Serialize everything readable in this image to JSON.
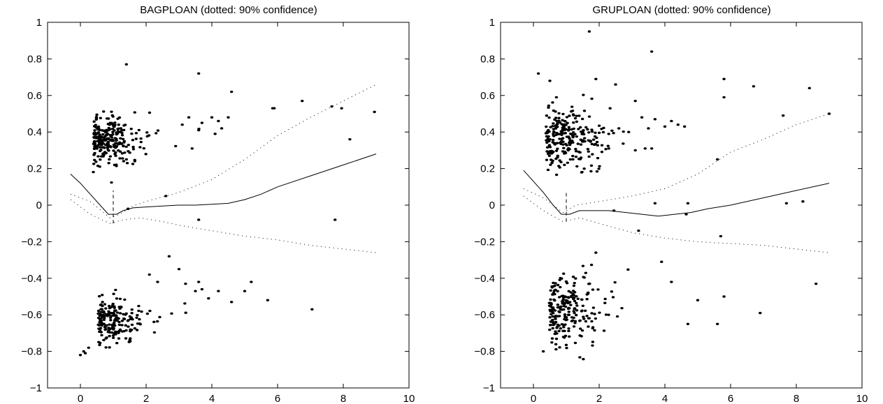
{
  "chart_data": [
    {
      "type": "scatter",
      "title": "BAGPLOAN (dotted: 90% confidence)",
      "xlabel": "",
      "ylabel": "",
      "xlim": [
        -1,
        10
      ],
      "ylim": [
        -1,
        1
      ],
      "x_ticks": [
        "0",
        "2",
        "4",
        "6",
        "8",
        "10"
      ],
      "x_tick_values": [
        0,
        2,
        4,
        6,
        8,
        10
      ],
      "y_ticks": [
        "-1",
        "-0.8",
        "-0.6",
        "-0.4",
        "-0.2",
        "0",
        "0.2",
        "0.4",
        "0.6",
        "0.8",
        "1"
      ],
      "y_tick_values": [
        -1,
        -0.8,
        -0.6,
        -0.4,
        -0.2,
        0,
        0.2,
        0.4,
        0.6,
        0.8,
        1
      ],
      "grid": false,
      "marker_vline_x": 1.0,
      "marker_vline_y": [
        -0.1,
        0.08
      ],
      "fit_curve": [
        [
          -0.3,
          0.17
        ],
        [
          0,
          0.12
        ],
        [
          0.3,
          0.06
        ],
        [
          0.6,
          0.0
        ],
        [
          0.85,
          -0.05
        ],
        [
          1.1,
          -0.05
        ],
        [
          1.3,
          -0.03
        ],
        [
          1.6,
          -0.015
        ],
        [
          2,
          -0.01
        ],
        [
          2.5,
          -0.005
        ],
        [
          3,
          0.0
        ],
        [
          3.5,
          0.0
        ],
        [
          4,
          0.005
        ],
        [
          4.5,
          0.01
        ],
        [
          5,
          0.03
        ],
        [
          5.5,
          0.06
        ],
        [
          6,
          0.1
        ],
        [
          7,
          0.16
        ],
        [
          8,
          0.22
        ],
        [
          9,
          0.28
        ]
      ],
      "ci_upper": [
        [
          -0.3,
          0.06
        ],
        [
          0.3,
          0.02
        ],
        [
          0.9,
          -0.07
        ],
        [
          1.2,
          -0.05
        ],
        [
          1.6,
          -0.005
        ],
        [
          2,
          0.02
        ],
        [
          3,
          0.07
        ],
        [
          4,
          0.14
        ],
        [
          5,
          0.25
        ],
        [
          6,
          0.38
        ],
        [
          7,
          0.48
        ],
        [
          8,
          0.57
        ],
        [
          9,
          0.66
        ]
      ],
      "ci_lower": [
        [
          -0.3,
          0.03
        ],
        [
          0.3,
          -0.05
        ],
        [
          0.9,
          -0.1
        ],
        [
          1.3,
          -0.08
        ],
        [
          1.8,
          -0.07
        ],
        [
          2.5,
          -0.09
        ],
        [
          3,
          -0.11
        ],
        [
          4,
          -0.14
        ],
        [
          5,
          -0.17
        ],
        [
          6,
          -0.19
        ],
        [
          7,
          -0.22
        ],
        [
          8,
          -0.24
        ],
        [
          9,
          -0.26
        ]
      ],
      "points_outliers": [
        [
          1.4,
          0.77
        ],
        [
          3.6,
          0.72
        ],
        [
          4.6,
          0.62
        ],
        [
          5.85,
          0.53
        ],
        [
          5.9,
          0.53
        ],
        [
          6.75,
          0.57
        ],
        [
          7.65,
          0.54
        ],
        [
          7.95,
          0.53
        ],
        [
          8.95,
          0.51
        ],
        [
          8.2,
          0.36
        ],
        [
          3.4,
          0.31
        ],
        [
          3.1,
          0.44
        ],
        [
          3.3,
          0.48
        ],
        [
          3.6,
          0.41
        ],
        [
          3.7,
          0.45
        ],
        [
          4.0,
          0.48
        ],
        [
          4.2,
          0.46
        ],
        [
          4.3,
          0.42
        ],
        [
          4.1,
          0.39
        ],
        [
          4.5,
          0.48
        ],
        [
          2.6,
          0.05
        ],
        [
          3.6,
          -0.08
        ],
        [
          1.45,
          -0.02
        ],
        [
          7.75,
          -0.08
        ],
        [
          2.7,
          -0.28
        ],
        [
          3.0,
          -0.35
        ],
        [
          3.2,
          -0.43
        ],
        [
          3.5,
          -0.47
        ],
        [
          3.6,
          -0.42
        ],
        [
          3.7,
          -0.46
        ],
        [
          3.9,
          -0.51
        ],
        [
          4.2,
          -0.47
        ],
        [
          4.6,
          -0.53
        ],
        [
          5.0,
          -0.47
        ],
        [
          5.2,
          -0.42
        ],
        [
          5.7,
          -0.52
        ],
        [
          7.05,
          -0.57
        ],
        [
          2.35,
          -0.42
        ],
        [
          2.1,
          -0.38
        ],
        [
          0.0,
          -0.82
        ],
        [
          0.15,
          -0.81
        ],
        [
          0.1,
          -0.8
        ],
        [
          0.25,
          -0.78
        ]
      ],
      "cluster_upper": {
        "center": [
          0.75,
          0.36
        ],
        "spread": [
          0.6,
          0.07
        ],
        "count": 250
      },
      "cluster_lower": {
        "center": [
          0.9,
          -0.63
        ],
        "spread": [
          0.6,
          0.06
        ],
        "count": 200
      }
    },
    {
      "type": "scatter",
      "title": "GRUPLOAN (dotted: 90% confidence)",
      "xlabel": "",
      "ylabel": "",
      "xlim": [
        -1,
        10
      ],
      "ylim": [
        -1,
        1
      ],
      "x_ticks": [
        "0",
        "2",
        "4",
        "6",
        "8",
        "10"
      ],
      "x_tick_values": [
        0,
        2,
        4,
        6,
        8,
        10
      ],
      "y_ticks": [
        "-1",
        "-0.8",
        "-0.6",
        "-0.4",
        "-0.2",
        "0",
        "0.2",
        "0.4",
        "0.6",
        "0.8",
        "1"
      ],
      "y_tick_values": [
        -1,
        -0.8,
        -0.6,
        -0.4,
        -0.2,
        0,
        0.2,
        0.4,
        0.6,
        0.8,
        1
      ],
      "grid": false,
      "marker_vline_x": 1.0,
      "marker_vline_y": [
        -0.09,
        0.07
      ],
      "fit_curve": [
        [
          -0.3,
          0.19
        ],
        [
          0,
          0.13
        ],
        [
          0.3,
          0.07
        ],
        [
          0.6,
          0.0
        ],
        [
          0.85,
          -0.05
        ],
        [
          1.1,
          -0.05
        ],
        [
          1.4,
          -0.03
        ],
        [
          1.8,
          -0.03
        ],
        [
          2.3,
          -0.03
        ],
        [
          2.8,
          -0.04
        ],
        [
          3.3,
          -0.05
        ],
        [
          3.8,
          -0.06
        ],
        [
          4.3,
          -0.05
        ],
        [
          4.8,
          -0.04
        ],
        [
          5.3,
          -0.02
        ],
        [
          6,
          0.0
        ],
        [
          7,
          0.04
        ],
        [
          8,
          0.08
        ],
        [
          9,
          0.12
        ]
      ],
      "ci_upper": [
        [
          -0.3,
          0.09
        ],
        [
          0.3,
          0.04
        ],
        [
          0.9,
          -0.04
        ],
        [
          1.3,
          0.0
        ],
        [
          2,
          0.02
        ],
        [
          3,
          0.05
        ],
        [
          4,
          0.09
        ],
        [
          5,
          0.17
        ],
        [
          6,
          0.29
        ],
        [
          7,
          0.36
        ],
        [
          8,
          0.44
        ],
        [
          9,
          0.5
        ]
      ],
      "ci_lower": [
        [
          -0.3,
          0.05
        ],
        [
          0.3,
          -0.03
        ],
        [
          0.9,
          -0.09
        ],
        [
          1.4,
          -0.07
        ],
        [
          2,
          -0.1
        ],
        [
          3,
          -0.15
        ],
        [
          4,
          -0.18
        ],
        [
          5,
          -0.2
        ],
        [
          6,
          -0.21
        ],
        [
          7,
          -0.22
        ],
        [
          8,
          -0.24
        ],
        [
          9,
          -0.26
        ]
      ],
      "points_outliers": [
        [
          1.7,
          0.95
        ],
        [
          3.6,
          0.84
        ],
        [
          0.15,
          0.72
        ],
        [
          0.5,
          0.68
        ],
        [
          1.9,
          0.69
        ],
        [
          2.5,
          0.66
        ],
        [
          5.8,
          0.69
        ],
        [
          6.7,
          0.65
        ],
        [
          8.4,
          0.64
        ],
        [
          5.8,
          0.59
        ],
        [
          7.6,
          0.49
        ],
        [
          9.0,
          0.5
        ],
        [
          2.6,
          0.42
        ],
        [
          2.9,
          0.4
        ],
        [
          3.1,
          0.57
        ],
        [
          3.3,
          0.48
        ],
        [
          3.5,
          0.42
        ],
        [
          3.7,
          0.47
        ],
        [
          4.0,
          0.43
        ],
        [
          4.2,
          0.46
        ],
        [
          4.4,
          0.44
        ],
        [
          4.6,
          0.43
        ],
        [
          3.1,
          0.3
        ],
        [
          3.4,
          0.31
        ],
        [
          3.6,
          0.31
        ],
        [
          5.6,
          0.25
        ],
        [
          3.7,
          0.01
        ],
        [
          4.7,
          0.01
        ],
        [
          7.7,
          0.01
        ],
        [
          8.2,
          0.02
        ],
        [
          2.45,
          -0.03
        ],
        [
          4.65,
          -0.05
        ],
        [
          3.2,
          -0.14
        ],
        [
          5.7,
          -0.17
        ],
        [
          3.9,
          -0.31
        ],
        [
          1.9,
          -0.26
        ],
        [
          4.2,
          -0.42
        ],
        [
          5.0,
          -0.52
        ],
        [
          4.7,
          -0.65
        ],
        [
          5.6,
          -0.65
        ],
        [
          5.8,
          -0.5
        ],
        [
          6.9,
          -0.59
        ],
        [
          8.6,
          -0.43
        ],
        [
          0.3,
          -0.8
        ]
      ],
      "cluster_upper": {
        "center": [
          0.8,
          0.37
        ],
        "spread": [
          0.7,
          0.08
        ],
        "count": 260
      },
      "cluster_lower": {
        "center": [
          0.9,
          -0.57
        ],
        "spread": [
          0.7,
          0.1
        ],
        "count": 230
      }
    }
  ]
}
